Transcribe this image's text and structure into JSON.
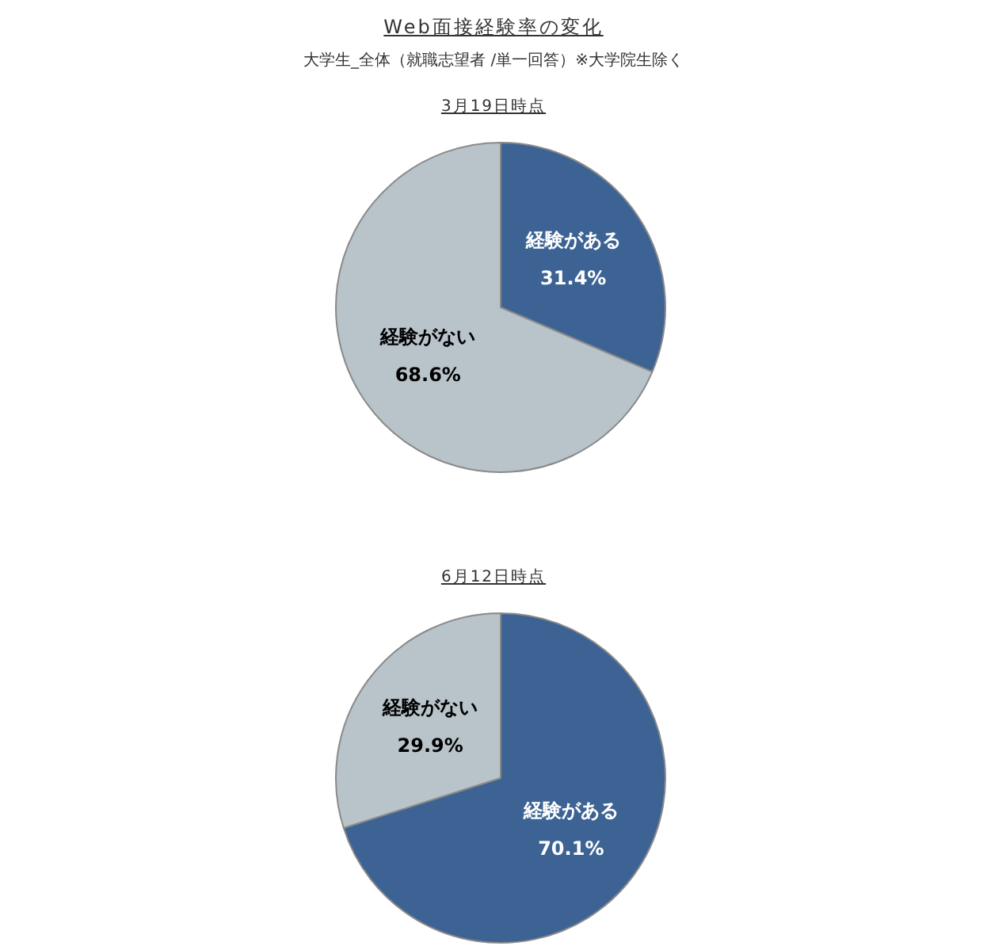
{
  "chart_data": [
    {
      "type": "pie",
      "title": "Web面接経験率の変化",
      "subtitle": "大学生_全体（就職志望者 /単一回答）※大学院生除く",
      "annotations": [
        "3月19日時点"
      ],
      "categories": [
        "経験がある",
        "経験がない"
      ],
      "values": [
        31.4,
        68.6
      ],
      "value_labels": [
        "31.4%",
        "68.6%"
      ],
      "colors": [
        "#3d6394",
        "#b8c3ca"
      ]
    },
    {
      "type": "pie",
      "title": "6月12日時点",
      "categories": [
        "経験がある",
        "経験がない"
      ],
      "values": [
        70.1,
        29.9
      ],
      "value_labels": [
        "70.1%",
        "29.9%"
      ],
      "colors": [
        "#3d6394",
        "#b8c3ca"
      ]
    }
  ]
}
